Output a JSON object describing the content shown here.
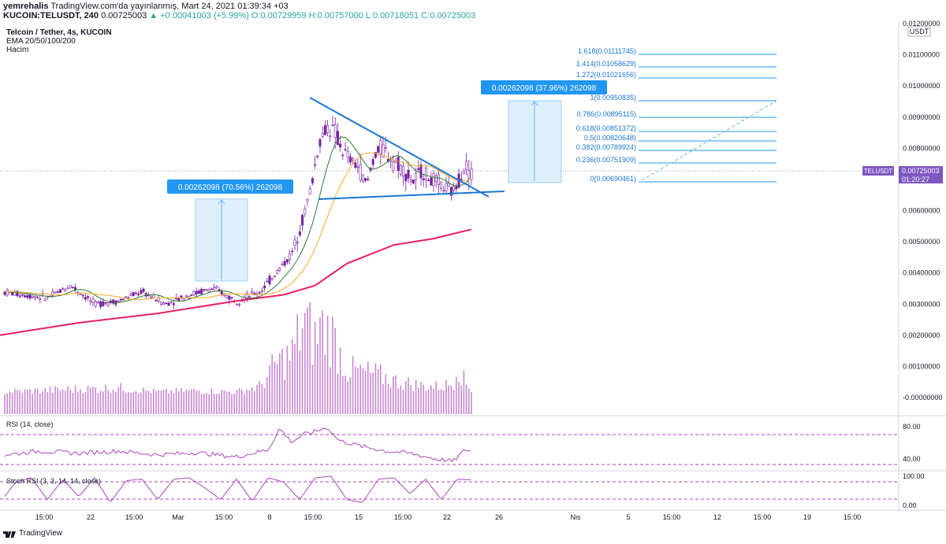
{
  "header": {
    "line1_user": "yemrehalis",
    "line1_rest": " TradingView.com'da yayınlanmış, Mart 24, 2021 01:39:34 +03",
    "symbol": "KUCOIN:TELUSDT, 240",
    "price": "0.00725003",
    "change": "▲ +0.00041003 (+5.99%)",
    "open": "O:0.00729959",
    "high": "H:0.00757000",
    "low": "L:0.00718051",
    "close": "C:0.00725003"
  },
  "legend": {
    "title": "Telcoin / Tether, 4s, KUCOIN",
    "ema": "EMA 20/50/100/200",
    "volume": "Hacim"
  },
  "price_axis": {
    "currency": "USDT",
    "ticks": [
      "0.01200000",
      "0.01100000",
      "0.01000000",
      "0.00900000",
      "0.00800000",
      "0.00600000",
      "0.00500000",
      "0.00400000",
      "0.00300000",
      "0.00200000",
      "0.00100000",
      "-0.00000000"
    ]
  },
  "last_price": {
    "symbol": "TELUSDT",
    "price": "0.00725003",
    "countdown": "01:20:27"
  },
  "rsi": {
    "label": "RSI (14, close)",
    "ticks": [
      "80.00",
      "40.00"
    ]
  },
  "stoch": {
    "label": "Stoch RSI (3, 3, 14, 14, close)",
    "ticks": [
      "100.00",
      "0.00"
    ]
  },
  "time_axis": [
    "15:00",
    "22",
    "15:00",
    "Mar",
    "15:00",
    "8",
    "15:00",
    "15",
    "15:00",
    "22",
    "26",
    "Nis",
    "5",
    "15:00",
    "12",
    "15:00",
    "19",
    "15:00"
  ],
  "measure_boxes": [
    {
      "label": "0.00262098 (70.56%) 262098"
    },
    {
      "label": "0.00262098 (37.96%) 262098"
    }
  ],
  "fib_levels": [
    {
      "label": "1.618(0.01111745)",
      "price": 0.01111745
    },
    {
      "label": "1.414(0.01058629)",
      "price": 0.01058629
    },
    {
      "label": "1.272(0.01021656)",
      "price": 0.01021656
    },
    {
      "label": "1(0.00950835)",
      "price": 0.00950835
    },
    {
      "label": "0.786(0.00895115)",
      "price": 0.00895115
    },
    {
      "label": "0.618(0.00851372)",
      "price": 0.00851372
    },
    {
      "label": "0.5(0.00820648)",
      "price": 0.00820648
    },
    {
      "label": "0.382(0.00789924)",
      "price": 0.00789924
    },
    {
      "label": "0.236(0.00751909)",
      "price": 0.00751909
    },
    {
      "label": "0(0.00690461)",
      "price": 0.00690461
    }
  ],
  "footer": {
    "brand": "TradingView"
  },
  "colors": {
    "ema200": "#e91e63",
    "ema20": "#2e7d32",
    "ema50": "#f9a825",
    "candle": "#7b1fa2",
    "trend": "#1976d2",
    "fib": "#2196f3",
    "rsi": "#ab47bc"
  },
  "chart_data": {
    "type": "candlestick",
    "title": "Telcoin / Tether, 4s, KUCOIN",
    "ylim": [
      -0.0005,
      0.012
    ],
    "last_close": 0.00725003,
    "series": [
      {
        "name": "EMA 20/50/100/200",
        "type": "line",
        "description": "EMA lines"
      }
    ],
    "price_path": [
      [
        0,
        0.0034
      ],
      [
        30,
        0.0033
      ],
      [
        60,
        0.0032
      ],
      [
        90,
        0.0036
      ],
      [
        120,
        0.003
      ],
      [
        150,
        0.0031
      ],
      [
        180,
        0.0034
      ],
      [
        210,
        0.003
      ],
      [
        240,
        0.0033
      ],
      [
        270,
        0.0035
      ],
      [
        300,
        0.0031
      ],
      [
        330,
        0.0034
      ],
      [
        350,
        0.004
      ],
      [
        370,
        0.0046
      ],
      [
        385,
        0.0058
      ],
      [
        395,
        0.0068
      ],
      [
        405,
        0.0082
      ],
      [
        415,
        0.0087
      ],
      [
        425,
        0.0085
      ],
      [
        435,
        0.0079
      ],
      [
        445,
        0.0076
      ],
      [
        455,
        0.0074
      ],
      [
        465,
        0.0068
      ],
      [
        475,
        0.0078
      ],
      [
        485,
        0.008
      ],
      [
        495,
        0.0077
      ],
      [
        505,
        0.0075
      ],
      [
        515,
        0.0072
      ],
      [
        525,
        0.0069
      ],
      [
        535,
        0.0073
      ],
      [
        545,
        0.007
      ],
      [
        555,
        0.0069
      ],
      [
        565,
        0.0067
      ],
      [
        575,
        0.0066
      ],
      [
        582,
        0.007
      ],
      [
        590,
        0.0075
      ],
      [
        597,
        0.0072
      ]
    ],
    "ema200_path": [
      [
        0,
        0.002
      ],
      [
        100,
        0.0024
      ],
      [
        200,
        0.0027
      ],
      [
        300,
        0.0031
      ],
      [
        360,
        0.0033
      ],
      [
        400,
        0.0036
      ],
      [
        440,
        0.0043
      ],
      [
        500,
        0.0049
      ],
      [
        550,
        0.0051
      ],
      [
        598,
        0.0054
      ]
    ],
    "rsi_path": [
      [
        0,
        52
      ],
      [
        50,
        58
      ],
      [
        100,
        55
      ],
      [
        150,
        58
      ],
      [
        200,
        53
      ],
      [
        250,
        56
      ],
      [
        300,
        50
      ],
      [
        340,
        60
      ],
      [
        355,
        88
      ],
      [
        370,
        70
      ],
      [
        385,
        80
      ],
      [
        400,
        84
      ],
      [
        415,
        90
      ],
      [
        430,
        72
      ],
      [
        460,
        64
      ],
      [
        490,
        58
      ],
      [
        520,
        55
      ],
      [
        550,
        48
      ],
      [
        575,
        44
      ],
      [
        590,
        60
      ],
      [
        598,
        58
      ]
    ],
    "stoch_path": [
      [
        0,
        10
      ],
      [
        20,
        80
      ],
      [
        40,
        95
      ],
      [
        60,
        20
      ],
      [
        80,
        90
      ],
      [
        100,
        30
      ],
      [
        120,
        95
      ],
      [
        140,
        10
      ],
      [
        160,
        85
      ],
      [
        180,
        90
      ],
      [
        200,
        20
      ],
      [
        220,
        90
      ],
      [
        240,
        95
      ],
      [
        260,
        60
      ],
      [
        280,
        20
      ],
      [
        300,
        90
      ],
      [
        320,
        15
      ],
      [
        340,
        95
      ],
      [
        360,
        80
      ],
      [
        380,
        20
      ],
      [
        400,
        95
      ],
      [
        420,
        100
      ],
      [
        440,
        20
      ],
      [
        460,
        10
      ],
      [
        480,
        90
      ],
      [
        500,
        95
      ],
      [
        520,
        40
      ],
      [
        540,
        90
      ],
      [
        560,
        20
      ],
      [
        580,
        90
      ],
      [
        598,
        88
      ]
    ],
    "volume_path": [
      [
        0,
        0.0002
      ],
      [
        50,
        0.00025
      ],
      [
        100,
        0.0003
      ],
      [
        150,
        0.00035
      ],
      [
        200,
        0.0002
      ],
      [
        250,
        0.00025
      ],
      [
        300,
        0.0002
      ],
      [
        330,
        0.0004
      ],
      [
        350,
        0.0012
      ],
      [
        370,
        0.0015
      ],
      [
        385,
        0.0027
      ],
      [
        400,
        0.002
      ],
      [
        405,
        0.0025
      ],
      [
        420,
        0.0023
      ],
      [
        440,
        0.001
      ],
      [
        460,
        0.0009
      ],
      [
        480,
        0.0008
      ],
      [
        500,
        0.0006
      ],
      [
        520,
        0.0005
      ],
      [
        540,
        0.0004
      ],
      [
        560,
        0.0004
      ],
      [
        575,
        0.0005
      ],
      [
        580,
        0.0013
      ],
      [
        590,
        0.0005
      ],
      [
        598,
        0.0003
      ]
    ]
  }
}
